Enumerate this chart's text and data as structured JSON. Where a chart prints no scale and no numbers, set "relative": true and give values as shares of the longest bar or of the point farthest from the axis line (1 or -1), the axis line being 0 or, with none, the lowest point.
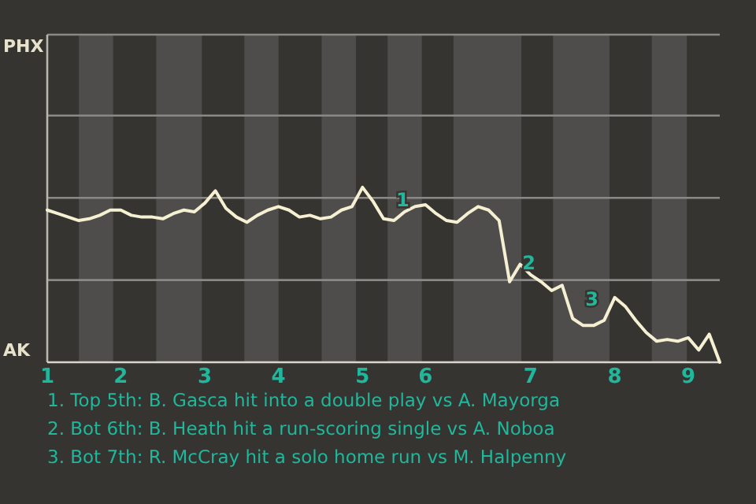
{
  "chart_data": {
    "type": "line",
    "relative": true,
    "categories": [
      "1",
      null,
      null,
      null,
      null,
      null,
      null,
      "2",
      null,
      null,
      null,
      null,
      null,
      null,
      null,
      "3",
      null,
      null,
      null,
      null,
      null,
      null,
      "4",
      null,
      null,
      null,
      null,
      null,
      null,
      null,
      "5",
      null,
      null,
      null,
      null,
      null,
      "6",
      null,
      null,
      null,
      null,
      null,
      null,
      null,
      null,
      null,
      "7",
      null,
      null,
      null,
      null,
      null,
      null,
      null,
      "8",
      null,
      null,
      null,
      null,
      null,
      null,
      "9",
      null,
      null,
      null
    ],
    "series": [
      {
        "color": "#f5f0d2",
        "values": [
          0.87,
          0.85,
          0.83,
          0.81,
          0.82,
          0.84,
          0.87,
          0.87,
          0.84,
          0.83,
          0.83,
          0.82,
          0.85,
          0.87,
          0.86,
          0.91,
          0.98,
          0.88,
          0.83,
          0.8,
          0.84,
          0.87,
          0.89,
          0.87,
          0.83,
          0.84,
          0.82,
          0.83,
          0.87,
          0.89,
          1,
          0.92,
          0.82,
          0.81,
          0.86,
          0.89,
          0.9,
          0.85,
          0.81,
          0.8,
          0.85,
          0.89,
          0.87,
          0.81,
          0.46,
          0.56,
          0.5,
          0.46,
          0.41,
          0.44,
          0.25,
          0.21,
          0.21,
          0.24,
          0.37,
          0.32,
          0.24,
          0.17,
          0.12,
          0.13,
          0.12,
          0.14,
          0.07,
          0.16,
          0
        ]
      }
    ],
    "marker": "none",
    "line_style": "solid",
    "ref_lines": [
      {
        "axis": "y",
        "value": 0.47,
        "color": "#8a8986"
      },
      {
        "axis": "y",
        "value": 0.94,
        "color": "#8a8986"
      },
      {
        "axis": "y",
        "value": 1.41,
        "color": "#8a8986"
      }
    ],
    "annotations": [
      "PHX",
      "AK",
      {
        "text": "1",
        "y": 0.82
      },
      {
        "text": "2",
        "y": 0.46
      },
      {
        "text": "3",
        "y": 0.25
      },
      "1. Top 5th: B. Gasca hit into a double play vs A. Mayorga",
      "2. Bot 6th: B. Heath hit a run-scoring single vs A. Noboa",
      "3. Bot 7th: R. McCray hit a solo home run vs M. Halpenny"
    ]
  }
}
